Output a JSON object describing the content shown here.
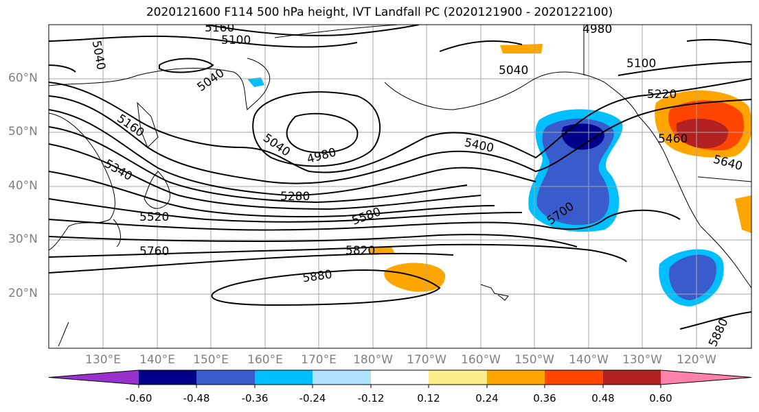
{
  "title": "2020121600 F114 500 hPa height, IVT Landfall PC (2020121900 - 2020122100)",
  "lat_labels": [
    "60°N",
    "50°N",
    "40°N",
    "30°N",
    "20°N"
  ],
  "lon_labels": [
    "130°E",
    "140°E",
    "150°E",
    "160°E",
    "170°E",
    "180°W",
    "170°W",
    "160°W",
    "150°W",
    "140°W",
    "130°W",
    "120°W"
  ],
  "contour_labels": [
    "5160",
    "5100",
    "4980",
    "5040",
    "5040",
    "5100",
    "5040",
    "5220",
    "5160",
    "4980",
    "5040",
    "5400",
    "5340",
    "5280",
    "5460",
    "5640",
    "5520",
    "5580",
    "5700",
    "5760",
    "5820",
    "5880",
    "5880"
  ],
  "colorbar": {
    "ticks": [
      "-0.60",
      "-0.48",
      "-0.36",
      "-0.24",
      "-0.12",
      "0.12",
      "0.24",
      "0.36",
      "0.48",
      "0.60"
    ],
    "colors": [
      "#9932cc",
      "#00008b",
      "#3a5bcc",
      "#00bfff",
      "#b0e2ff",
      "#ffffff",
      "#ffec8b",
      "#ffa500",
      "#ff4500",
      "#b22222",
      "#ff82ab"
    ]
  },
  "chart_data": {
    "type": "heatmap",
    "title": "2020121600 F114 500 hPa height, IVT Landfall PC (2020121900 - 2020122100)",
    "contour_levels_height": [
      4980,
      5040,
      5100,
      5160,
      5220,
      5280,
      5340,
      5400,
      5460,
      5520,
      5580,
      5640,
      5700,
      5760,
      5820,
      5880
    ],
    "shading_levels": [
      -0.6,
      -0.48,
      -0.36,
      -0.24,
      -0.12,
      0.12,
      0.24,
      0.36,
      0.48,
      0.6
    ],
    "xlim": [
      "120°E",
      "115°W"
    ],
    "ylim": [
      "10°N",
      "70°N"
    ],
    "grid": true
  }
}
